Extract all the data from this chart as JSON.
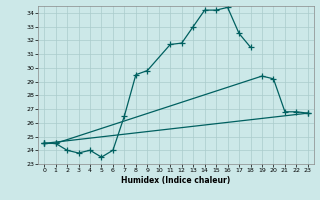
{
  "xlabel": "Humidex (Indice chaleur)",
  "xlim": [
    -0.5,
    23.5
  ],
  "ylim": [
    23,
    34.5
  ],
  "yticks": [
    23,
    24,
    25,
    26,
    27,
    28,
    29,
    30,
    31,
    32,
    33,
    34
  ],
  "xticks": [
    0,
    1,
    2,
    3,
    4,
    5,
    6,
    7,
    8,
    9,
    10,
    11,
    12,
    13,
    14,
    15,
    16,
    17,
    18,
    19,
    20,
    21,
    22,
    23
  ],
  "background_color": "#cce8e8",
  "grid_color": "#aacccc",
  "line_color": "#006060",
  "line1_x": [
    0,
    1,
    2,
    3,
    4,
    5,
    6,
    7,
    8,
    9,
    11,
    12,
    13,
    14,
    15,
    16,
    17,
    18
  ],
  "line1_y": [
    24.5,
    24.5,
    24.0,
    23.8,
    24.0,
    23.5,
    24.0,
    26.5,
    29.5,
    29.8,
    31.7,
    31.8,
    33.0,
    34.2,
    34.2,
    34.4,
    32.5,
    31.5
  ],
  "line2_x": [
    0,
    1,
    19,
    20,
    21,
    22,
    23
  ],
  "line2_y": [
    24.5,
    24.5,
    29.4,
    29.2,
    26.8,
    26.8,
    26.7
  ],
  "line3_x": [
    0,
    23
  ],
  "line3_y": [
    24.5,
    26.7
  ]
}
